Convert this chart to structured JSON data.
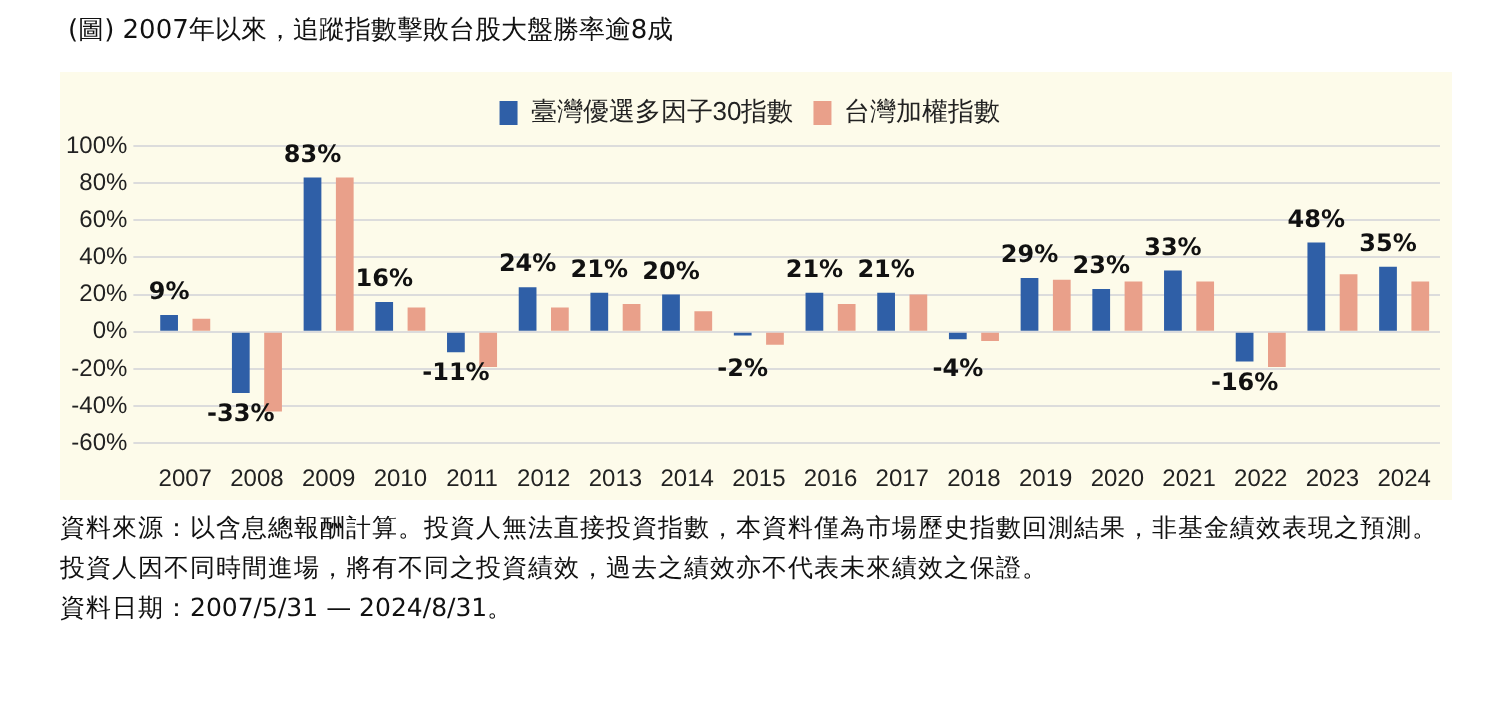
{
  "chart_data": {
    "type": "bar",
    "title": "(圖) 2007年以來，追蹤指數擊敗台股大盤勝率逾8成",
    "categories": [
      "2007",
      "2008",
      "2009",
      "2010",
      "2011",
      "2012",
      "2013",
      "2014",
      "2015",
      "2016",
      "2017",
      "2018",
      "2019",
      "2020",
      "2021",
      "2022",
      "2023",
      "2024"
    ],
    "series": [
      {
        "name": "臺灣優選多因子30指數",
        "color": "#2f5fa7",
        "values": [
          9,
          -33,
          83,
          16,
          -11,
          24,
          21,
          20,
          -2,
          21,
          21,
          -4,
          29,
          23,
          33,
          -16,
          48,
          35
        ],
        "value_labels": [
          "9%",
          "-33%",
          "83%",
          "16%",
          "-11%",
          "24%",
          "21%",
          "20%",
          "-2%",
          "21%",
          "21%",
          "-4%",
          "29%",
          "23%",
          "33%",
          "-16%",
          "48%",
          "35%"
        ]
      },
      {
        "name": "台灣加權指數",
        "color": "#e9a08a",
        "values": [
          7,
          -43,
          83,
          13,
          -19,
          13,
          15,
          11,
          -7,
          15,
          20,
          -5,
          28,
          27,
          27,
          -19,
          31,
          27
        ]
      }
    ],
    "ylim": [
      -60,
      100
    ],
    "yticks": [
      {
        "value": -60,
        "label": "-60%"
      },
      {
        "value": -40,
        "label": "-40%"
      },
      {
        "value": -20,
        "label": "-20%"
      },
      {
        "value": 0,
        "label": "0%"
      },
      {
        "value": 20,
        "label": "20%"
      },
      {
        "value": 40,
        "label": "40%"
      },
      {
        "value": 60,
        "label": "60%"
      },
      {
        "value": 80,
        "label": "80%"
      },
      {
        "value": 100,
        "label": "100%"
      }
    ],
    "grid": "y",
    "legend": "top",
    "annotations": [
      "資料來源：以含息總報酬計算。投資人無法直接投資指數，本資料僅為市場歷史指數回測結果，非基金績效表現之預測。投資人因不同時間進場，將有不同之投資績效，過去之績效亦不代表未來績效之保證。",
      "資料日期：2007/5/31 — 2024/8/31。"
    ]
  }
}
